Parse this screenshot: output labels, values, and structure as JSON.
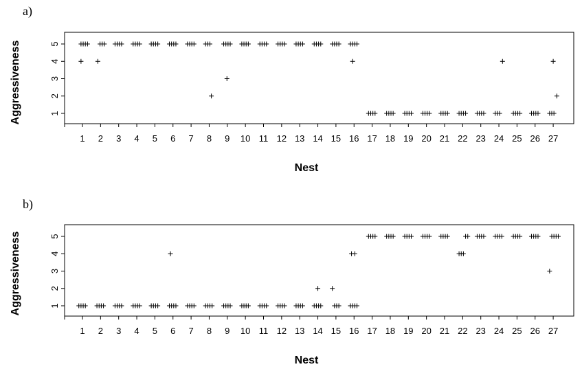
{
  "chart_data": [
    {
      "type": "scatter",
      "panel_label": "a)",
      "xlabel": "Nest",
      "ylabel": "Aggressiveness",
      "x_ticks": [
        "1",
        "2",
        "3",
        "4",
        "5",
        "6",
        "7",
        "8",
        "9",
        "10",
        "11",
        "12",
        "13",
        "14",
        "15",
        "16",
        "17",
        "18",
        "19",
        "20",
        "21",
        "22",
        "23",
        "24",
        "25",
        "26",
        "27"
      ],
      "y_ticks": [
        1,
        2,
        3,
        4,
        5
      ],
      "ylim": [
        1,
        5
      ],
      "marker": "+",
      "points": [
        {
          "x": 0.92,
          "y": 4
        },
        {
          "x": 0.92,
          "y": 5
        },
        {
          "x": 1.04,
          "y": 5
        },
        {
          "x": 1.16,
          "y": 5
        },
        {
          "x": 1.28,
          "y": 5
        },
        {
          "x": 1.85,
          "y": 4
        },
        {
          "x": 1.97,
          "y": 5
        },
        {
          "x": 2.09,
          "y": 5
        },
        {
          "x": 2.21,
          "y": 5
        },
        {
          "x": 2.8,
          "y": 5
        },
        {
          "x": 2.92,
          "y": 5
        },
        {
          "x": 3.04,
          "y": 5
        },
        {
          "x": 3.16,
          "y": 5
        },
        {
          "x": 3.8,
          "y": 5
        },
        {
          "x": 3.92,
          "y": 5
        },
        {
          "x": 4.04,
          "y": 5
        },
        {
          "x": 4.16,
          "y": 5
        },
        {
          "x": 4.8,
          "y": 5
        },
        {
          "x": 4.92,
          "y": 5
        },
        {
          "x": 5.04,
          "y": 5
        },
        {
          "x": 5.16,
          "y": 5
        },
        {
          "x": 5.8,
          "y": 5
        },
        {
          "x": 5.92,
          "y": 5
        },
        {
          "x": 6.04,
          "y": 5
        },
        {
          "x": 6.16,
          "y": 5
        },
        {
          "x": 6.8,
          "y": 5
        },
        {
          "x": 6.92,
          "y": 5
        },
        {
          "x": 7.04,
          "y": 5
        },
        {
          "x": 7.16,
          "y": 5
        },
        {
          "x": 7.8,
          "y": 5
        },
        {
          "x": 7.92,
          "y": 5
        },
        {
          "x": 8.04,
          "y": 5
        },
        {
          "x": 8.12,
          "y": 2
        },
        {
          "x": 8.8,
          "y": 5
        },
        {
          "x": 8.92,
          "y": 5
        },
        {
          "x": 8.98,
          "y": 3
        },
        {
          "x": 9.04,
          "y": 5
        },
        {
          "x": 9.16,
          "y": 5
        },
        {
          "x": 9.8,
          "y": 5
        },
        {
          "x": 9.92,
          "y": 5
        },
        {
          "x": 10.04,
          "y": 5
        },
        {
          "x": 10.16,
          "y": 5
        },
        {
          "x": 10.8,
          "y": 5
        },
        {
          "x": 10.92,
          "y": 5
        },
        {
          "x": 11.04,
          "y": 5
        },
        {
          "x": 11.16,
          "y": 5
        },
        {
          "x": 11.8,
          "y": 5
        },
        {
          "x": 11.92,
          "y": 5
        },
        {
          "x": 12.04,
          "y": 5
        },
        {
          "x": 12.16,
          "y": 5
        },
        {
          "x": 12.8,
          "y": 5
        },
        {
          "x": 12.92,
          "y": 5
        },
        {
          "x": 13.04,
          "y": 5
        },
        {
          "x": 13.16,
          "y": 5
        },
        {
          "x": 13.8,
          "y": 5
        },
        {
          "x": 13.92,
          "y": 5
        },
        {
          "x": 14.04,
          "y": 5
        },
        {
          "x": 14.16,
          "y": 5
        },
        {
          "x": 14.8,
          "y": 5
        },
        {
          "x": 14.92,
          "y": 5
        },
        {
          "x": 15.04,
          "y": 5
        },
        {
          "x": 15.16,
          "y": 5
        },
        {
          "x": 15.8,
          "y": 5
        },
        {
          "x": 15.92,
          "y": 4
        },
        {
          "x": 15.92,
          "y": 5
        },
        {
          "x": 16.04,
          "y": 5
        },
        {
          "x": 16.16,
          "y": 5
        },
        {
          "x": 16.8,
          "y": 1
        },
        {
          "x": 16.92,
          "y": 1
        },
        {
          "x": 17.04,
          "y": 1
        },
        {
          "x": 17.16,
          "y": 1
        },
        {
          "x": 17.8,
          "y": 1
        },
        {
          "x": 17.92,
          "y": 1
        },
        {
          "x": 18.04,
          "y": 1
        },
        {
          "x": 18.16,
          "y": 1
        },
        {
          "x": 18.8,
          "y": 1
        },
        {
          "x": 18.92,
          "y": 1
        },
        {
          "x": 19.04,
          "y": 1
        },
        {
          "x": 19.16,
          "y": 1
        },
        {
          "x": 19.8,
          "y": 1
        },
        {
          "x": 19.92,
          "y": 1
        },
        {
          "x": 20.04,
          "y": 1
        },
        {
          "x": 20.16,
          "y": 1
        },
        {
          "x": 20.8,
          "y": 1
        },
        {
          "x": 20.92,
          "y": 1
        },
        {
          "x": 21.04,
          "y": 1
        },
        {
          "x": 21.16,
          "y": 1
        },
        {
          "x": 21.8,
          "y": 1
        },
        {
          "x": 21.92,
          "y": 1
        },
        {
          "x": 22.04,
          "y": 1
        },
        {
          "x": 22.16,
          "y": 1
        },
        {
          "x": 22.8,
          "y": 1
        },
        {
          "x": 22.92,
          "y": 1
        },
        {
          "x": 23.04,
          "y": 1
        },
        {
          "x": 23.16,
          "y": 1
        },
        {
          "x": 23.8,
          "y": 1
        },
        {
          "x": 23.92,
          "y": 1
        },
        {
          "x": 24.04,
          "y": 1
        },
        {
          "x": 24.2,
          "y": 4
        },
        {
          "x": 24.8,
          "y": 1
        },
        {
          "x": 24.92,
          "y": 1
        },
        {
          "x": 25.04,
          "y": 1
        },
        {
          "x": 25.16,
          "y": 1
        },
        {
          "x": 25.8,
          "y": 1
        },
        {
          "x": 25.92,
          "y": 1
        },
        {
          "x": 26.04,
          "y": 1
        },
        {
          "x": 26.16,
          "y": 1
        },
        {
          "x": 26.8,
          "y": 1
        },
        {
          "x": 26.92,
          "y": 1
        },
        {
          "x": 27.0,
          "y": 4
        },
        {
          "x": 27.04,
          "y": 1
        },
        {
          "x": 27.2,
          "y": 2
        }
      ]
    },
    {
      "type": "scatter",
      "panel_label": "b)",
      "xlabel": "Nest",
      "ylabel": "Aggressiveness",
      "x_ticks": [
        "1",
        "2",
        "3",
        "4",
        "5",
        "6",
        "7",
        "8",
        "9",
        "10",
        "11",
        "12",
        "13",
        "14",
        "15",
        "16",
        "17",
        "18",
        "19",
        "20",
        "21",
        "22",
        "23",
        "24",
        "25",
        "26",
        "27"
      ],
      "y_ticks": [
        1,
        2,
        3,
        4,
        5
      ],
      "ylim": [
        1,
        5
      ],
      "marker": "+",
      "points": [
        {
          "x": 0.8,
          "y": 1
        },
        {
          "x": 0.92,
          "y": 1
        },
        {
          "x": 1.04,
          "y": 1
        },
        {
          "x": 1.16,
          "y": 1
        },
        {
          "x": 1.8,
          "y": 1
        },
        {
          "x": 1.92,
          "y": 1
        },
        {
          "x": 2.04,
          "y": 1
        },
        {
          "x": 2.16,
          "y": 1
        },
        {
          "x": 2.8,
          "y": 1
        },
        {
          "x": 2.92,
          "y": 1
        },
        {
          "x": 3.04,
          "y": 1
        },
        {
          "x": 3.16,
          "y": 1
        },
        {
          "x": 3.8,
          "y": 1
        },
        {
          "x": 3.92,
          "y": 1
        },
        {
          "x": 4.04,
          "y": 1
        },
        {
          "x": 4.16,
          "y": 1
        },
        {
          "x": 4.8,
          "y": 1
        },
        {
          "x": 4.92,
          "y": 1
        },
        {
          "x": 5.04,
          "y": 1
        },
        {
          "x": 5.16,
          "y": 1
        },
        {
          "x": 5.8,
          "y": 1
        },
        {
          "x": 5.86,
          "y": 4
        },
        {
          "x": 5.92,
          "y": 1
        },
        {
          "x": 6.04,
          "y": 1
        },
        {
          "x": 6.16,
          "y": 1
        },
        {
          "x": 6.8,
          "y": 1
        },
        {
          "x": 6.92,
          "y": 1
        },
        {
          "x": 7.04,
          "y": 1
        },
        {
          "x": 7.16,
          "y": 1
        },
        {
          "x": 7.8,
          "y": 1
        },
        {
          "x": 7.92,
          "y": 1
        },
        {
          "x": 8.04,
          "y": 1
        },
        {
          "x": 8.16,
          "y": 1
        },
        {
          "x": 8.8,
          "y": 1
        },
        {
          "x": 8.92,
          "y": 1
        },
        {
          "x": 9.04,
          "y": 1
        },
        {
          "x": 9.16,
          "y": 1
        },
        {
          "x": 9.8,
          "y": 1
        },
        {
          "x": 9.92,
          "y": 1
        },
        {
          "x": 10.04,
          "y": 1
        },
        {
          "x": 10.16,
          "y": 1
        },
        {
          "x": 10.8,
          "y": 1
        },
        {
          "x": 10.92,
          "y": 1
        },
        {
          "x": 11.04,
          "y": 1
        },
        {
          "x": 11.16,
          "y": 1
        },
        {
          "x": 11.8,
          "y": 1
        },
        {
          "x": 11.92,
          "y": 1
        },
        {
          "x": 12.04,
          "y": 1
        },
        {
          "x": 12.16,
          "y": 1
        },
        {
          "x": 12.8,
          "y": 1
        },
        {
          "x": 12.92,
          "y": 1
        },
        {
          "x": 13.04,
          "y": 1
        },
        {
          "x": 13.16,
          "y": 1
        },
        {
          "x": 13.8,
          "y": 1
        },
        {
          "x": 13.92,
          "y": 1
        },
        {
          "x": 14.0,
          "y": 2
        },
        {
          "x": 14.04,
          "y": 1
        },
        {
          "x": 14.16,
          "y": 1
        },
        {
          "x": 14.8,
          "y": 2
        },
        {
          "x": 14.92,
          "y": 1
        },
        {
          "x": 15.04,
          "y": 1
        },
        {
          "x": 15.16,
          "y": 1
        },
        {
          "x": 15.8,
          "y": 1
        },
        {
          "x": 15.86,
          "y": 4
        },
        {
          "x": 15.92,
          "y": 1
        },
        {
          "x": 16.04,
          "y": 1
        },
        {
          "x": 16.04,
          "y": 4
        },
        {
          "x": 16.16,
          "y": 1
        },
        {
          "x": 16.8,
          "y": 5
        },
        {
          "x": 16.92,
          "y": 5
        },
        {
          "x": 17.04,
          "y": 5
        },
        {
          "x": 17.16,
          "y": 5
        },
        {
          "x": 17.8,
          "y": 5
        },
        {
          "x": 17.92,
          "y": 5
        },
        {
          "x": 18.04,
          "y": 5
        },
        {
          "x": 18.16,
          "y": 5
        },
        {
          "x": 18.8,
          "y": 5
        },
        {
          "x": 18.92,
          "y": 5
        },
        {
          "x": 19.04,
          "y": 5
        },
        {
          "x": 19.16,
          "y": 5
        },
        {
          "x": 19.8,
          "y": 5
        },
        {
          "x": 19.92,
          "y": 5
        },
        {
          "x": 20.04,
          "y": 5
        },
        {
          "x": 20.16,
          "y": 5
        },
        {
          "x": 20.8,
          "y": 5
        },
        {
          "x": 20.92,
          "y": 5
        },
        {
          "x": 21.04,
          "y": 5
        },
        {
          "x": 21.16,
          "y": 5
        },
        {
          "x": 21.8,
          "y": 4
        },
        {
          "x": 21.92,
          "y": 4
        },
        {
          "x": 22.04,
          "y": 4
        },
        {
          "x": 22.16,
          "y": 5
        },
        {
          "x": 22.28,
          "y": 5
        },
        {
          "x": 22.8,
          "y": 5
        },
        {
          "x": 22.92,
          "y": 5
        },
        {
          "x": 23.04,
          "y": 5
        },
        {
          "x": 23.16,
          "y": 5
        },
        {
          "x": 23.8,
          "y": 5
        },
        {
          "x": 23.92,
          "y": 5
        },
        {
          "x": 24.04,
          "y": 5
        },
        {
          "x": 24.16,
          "y": 5
        },
        {
          "x": 24.8,
          "y": 5
        },
        {
          "x": 24.92,
          "y": 5
        },
        {
          "x": 25.04,
          "y": 5
        },
        {
          "x": 25.16,
          "y": 5
        },
        {
          "x": 25.8,
          "y": 5
        },
        {
          "x": 25.92,
          "y": 5
        },
        {
          "x": 26.04,
          "y": 5
        },
        {
          "x": 26.16,
          "y": 5
        },
        {
          "x": 26.8,
          "y": 3
        },
        {
          "x": 26.92,
          "y": 5
        },
        {
          "x": 27.04,
          "y": 5
        },
        {
          "x": 27.16,
          "y": 5
        },
        {
          "x": 27.28,
          "y": 5
        }
      ]
    }
  ]
}
